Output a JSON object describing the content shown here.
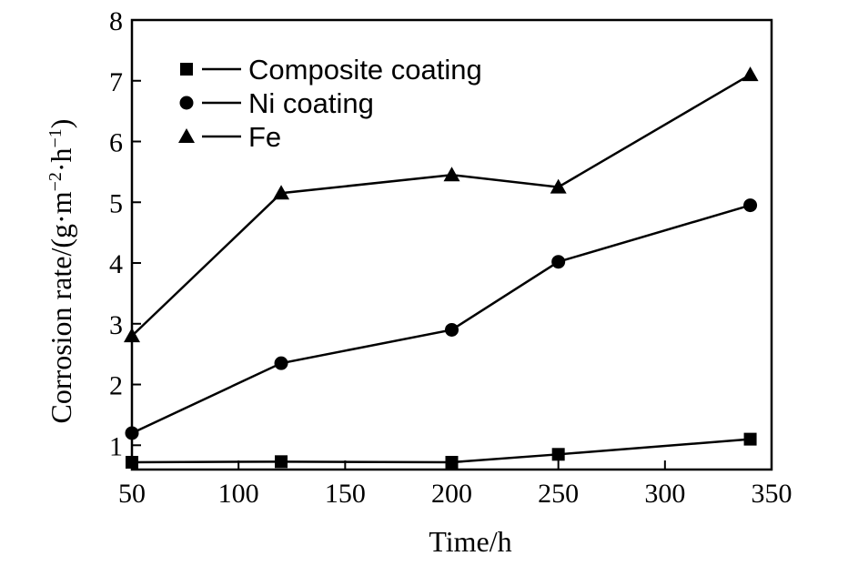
{
  "chart_data": {
    "type": "line",
    "xlabel": "Time/h",
    "ylabel_main": "Corrosion rate/(g·m",
    "ylabel_sup1": "−2",
    "ylabel_mid": "·h",
    "ylabel_sup2": "−1",
    "ylabel_end": ")",
    "xlim": [
      50,
      350
    ],
    "ylim": [
      0.6,
      8
    ],
    "xticks": [
      50,
      100,
      150,
      200,
      250,
      300,
      350
    ],
    "yticks": [
      1,
      2,
      3,
      4,
      5,
      6,
      7,
      8
    ],
    "x": [
      50,
      120,
      200,
      250,
      340
    ],
    "series": [
      {
        "name": "Composite coating",
        "marker": "square",
        "values": [
          0.72,
          0.73,
          0.72,
          0.85,
          1.1
        ]
      },
      {
        "name": "Ni coating",
        "marker": "circle",
        "values": [
          1.2,
          2.35,
          2.9,
          4.02,
          4.95
        ]
      },
      {
        "name": "Fe",
        "marker": "triangle",
        "values": [
          2.8,
          5.15,
          5.45,
          5.25,
          7.1
        ]
      }
    ],
    "grid": false,
    "legend_position": "top-left"
  }
}
